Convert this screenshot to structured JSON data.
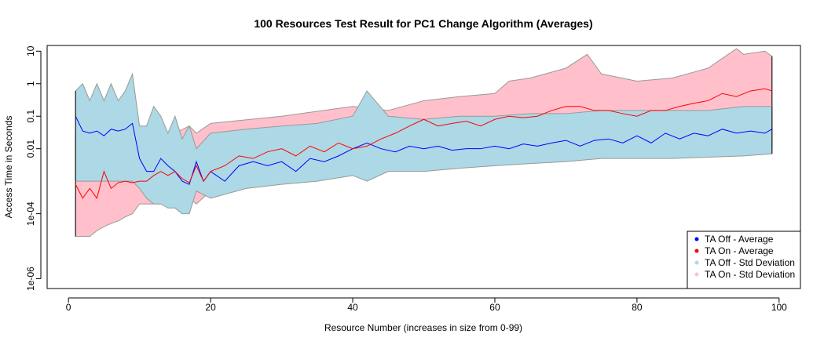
{
  "chart_data": {
    "type": "line",
    "title": "100 Resources Test Result for PC1 Change Algorithm (Averages)",
    "xlabel": "Resource Number (increases in size from 0-99)",
    "ylabel": "Access Time in Seconds",
    "x_scale": "linear",
    "y_scale": "log10",
    "xlim": [
      -3,
      103
    ],
    "ylim": [
      5e-07,
      15
    ],
    "x_ticks": [
      {
        "value": 0,
        "label": "0"
      },
      {
        "value": 20,
        "label": "20"
      },
      {
        "value": 40,
        "label": "40"
      },
      {
        "value": 60,
        "label": "60"
      },
      {
        "value": 80,
        "label": "80"
      },
      {
        "value": 100,
        "label": "100"
      }
    ],
    "y_ticks": [
      {
        "value": 1e-06,
        "label": "1e-06"
      },
      {
        "value": 0.0001,
        "label": "1e-04"
      },
      {
        "value": 0.01,
        "label": "0.01"
      },
      {
        "value": 0.1,
        "label": "0.1"
      },
      {
        "value": 1,
        "label": "1"
      },
      {
        "value": 10,
        "label": "10"
      }
    ],
    "legend": {
      "position": "bottom-right",
      "entries": [
        {
          "label": "TA Off - Average",
          "color": "#0000ff"
        },
        {
          "label": "TA On - Average",
          "color": "#ff0000"
        },
        {
          "label": "TA Off - Std Deviation",
          "color": "#add8e6"
        },
        {
          "label": "TA On - Std Deviation",
          "color": "#ffc0cb"
        }
      ]
    },
    "bands": [
      {
        "name": "TA On - Std Deviation",
        "fill": "#ffc0cb",
        "x": [
          1,
          2,
          3,
          4,
          5,
          6,
          7,
          8,
          9,
          10,
          15,
          17,
          18,
          20,
          30,
          40,
          45,
          50,
          55,
          60,
          62,
          65,
          70,
          73,
          75,
          80,
          85,
          90,
          94,
          95,
          98,
          99
        ],
        "upper": [
          0.03,
          0.05,
          0.02,
          0.03,
          0.04,
          0.03,
          0.02,
          0.03,
          0.04,
          0.02,
          0.03,
          0.05,
          0.03,
          0.06,
          0.1,
          0.2,
          0.15,
          0.3,
          0.4,
          0.5,
          1.2,
          1.5,
          3,
          8,
          2,
          1.2,
          1.5,
          3,
          12,
          8,
          10,
          7
        ],
        "lower": [
          2e-05,
          2e-05,
          2e-05,
          3e-05,
          4e-05,
          5e-05,
          6e-05,
          8e-05,
          0.0001,
          0.0002,
          0.0002,
          0.0003,
          0.0002,
          0.0005,
          0.001,
          0.002,
          0.003,
          0.004,
          0.005,
          0.006,
          0.006,
          0.007,
          0.008,
          0.008,
          0.009,
          0.01,
          0.01,
          0.01,
          0.012,
          0.01,
          0.01,
          0.01
        ]
      },
      {
        "name": "TA Off - Std Deviation",
        "fill": "#add8e6",
        "x": [
          1,
          2,
          3,
          4,
          5,
          6,
          7,
          8,
          9,
          10,
          11,
          12,
          13,
          14,
          15,
          16,
          17,
          18,
          20,
          25,
          30,
          35,
          40,
          42,
          45,
          50,
          55,
          60,
          65,
          70,
          75,
          80,
          85,
          90,
          95,
          99
        ],
        "upper": [
          0.6,
          1.0,
          0.3,
          1.0,
          0.3,
          1.0,
          0.3,
          0.6,
          2.0,
          0.05,
          0.05,
          0.2,
          0.1,
          0.03,
          0.1,
          0.02,
          0.05,
          0.01,
          0.03,
          0.04,
          0.05,
          0.06,
          0.1,
          0.6,
          0.1,
          0.08,
          0.1,
          0.1,
          0.12,
          0.12,
          0.15,
          0.15,
          0.15,
          0.15,
          0.2,
          0.2
        ],
        "lower": [
          0.001,
          0.001,
          0.001,
          0.001,
          0.001,
          0.001,
          0.001,
          0.001,
          0.001,
          0.0006,
          0.0003,
          0.0002,
          0.0002,
          0.00015,
          0.00015,
          0.0001,
          0.0001,
          0.0005,
          0.0003,
          0.0006,
          0.0008,
          0.001,
          0.0015,
          0.001,
          0.002,
          0.002,
          0.0025,
          0.003,
          0.0035,
          0.004,
          0.005,
          0.005,
          0.005,
          0.0055,
          0.006,
          0.007
        ]
      }
    ],
    "series": [
      {
        "name": "TA Off - Average",
        "color": "#0000ff",
        "x": [
          1,
          2,
          3,
          4,
          5,
          6,
          7,
          8,
          9,
          10,
          11,
          12,
          13,
          14,
          15,
          16,
          17,
          18,
          19,
          20,
          22,
          24,
          26,
          28,
          30,
          32,
          34,
          36,
          38,
          40,
          42,
          44,
          46,
          48,
          50,
          52,
          54,
          56,
          58,
          60,
          62,
          64,
          66,
          68,
          70,
          72,
          74,
          76,
          78,
          80,
          82,
          84,
          86,
          88,
          90,
          92,
          94,
          96,
          98,
          99
        ],
        "y": [
          0.1,
          0.035,
          0.03,
          0.035,
          0.025,
          0.04,
          0.035,
          0.04,
          0.06,
          0.005,
          0.002,
          0.002,
          0.005,
          0.003,
          0.002,
          0.001,
          0.0008,
          0.004,
          0.001,
          0.002,
          0.001,
          0.003,
          0.004,
          0.003,
          0.004,
          0.002,
          0.005,
          0.004,
          0.006,
          0.01,
          0.015,
          0.01,
          0.008,
          0.012,
          0.01,
          0.012,
          0.009,
          0.01,
          0.01,
          0.012,
          0.01,
          0.014,
          0.012,
          0.015,
          0.018,
          0.012,
          0.018,
          0.02,
          0.015,
          0.025,
          0.015,
          0.03,
          0.02,
          0.03,
          0.025,
          0.04,
          0.03,
          0.035,
          0.03,
          0.04
        ]
      },
      {
        "name": "TA On - Average",
        "color": "#ff0000",
        "x": [
          1,
          2,
          3,
          4,
          5,
          6,
          7,
          8,
          9,
          10,
          11,
          12,
          13,
          14,
          15,
          16,
          17,
          18,
          19,
          20,
          22,
          24,
          26,
          28,
          30,
          32,
          34,
          36,
          38,
          40,
          42,
          44,
          46,
          48,
          50,
          52,
          54,
          56,
          58,
          60,
          62,
          64,
          66,
          68,
          70,
          72,
          74,
          76,
          78,
          80,
          82,
          84,
          86,
          88,
          90,
          92,
          94,
          96,
          98,
          99
        ],
        "y": [
          0.0008,
          0.0003,
          0.0006,
          0.0003,
          0.002,
          0.0006,
          0.0009,
          0.001,
          0.0009,
          0.001,
          0.001,
          0.0015,
          0.002,
          0.0015,
          0.002,
          0.0012,
          0.0009,
          0.003,
          0.001,
          0.002,
          0.003,
          0.006,
          0.005,
          0.008,
          0.01,
          0.006,
          0.012,
          0.008,
          0.015,
          0.01,
          0.012,
          0.02,
          0.03,
          0.05,
          0.08,
          0.05,
          0.06,
          0.07,
          0.05,
          0.08,
          0.1,
          0.09,
          0.1,
          0.15,
          0.2,
          0.2,
          0.15,
          0.15,
          0.12,
          0.1,
          0.15,
          0.15,
          0.2,
          0.25,
          0.3,
          0.5,
          0.4,
          0.6,
          0.7,
          0.6
        ]
      }
    ]
  }
}
